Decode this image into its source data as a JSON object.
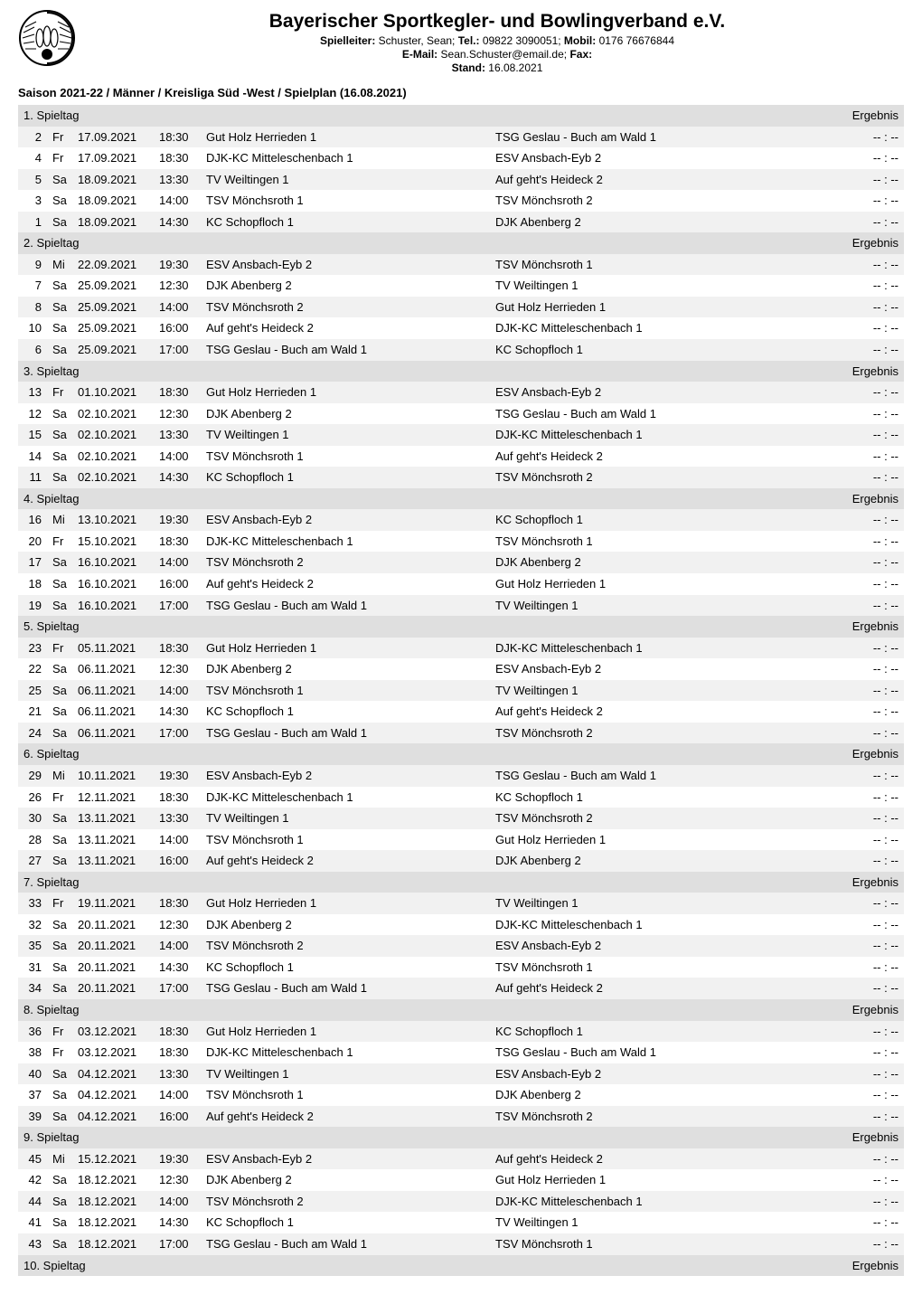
{
  "header": {
    "org_title": "Bayerischer Sportkegler- und Bowlingverband e.V.",
    "line1_label1": "Spielleiter:",
    "line1_val1": " Schuster, Sean; ",
    "line1_label2": "Tel.:",
    "line1_val2": " 09822 3090051; ",
    "line1_label3": "Mobil:",
    "line1_val3": " 0176 76676844",
    "line2_label1": "E-Mail:",
    "line2_val1": " Sean.Schuster@email.de; ",
    "line2_label2": "Fax:",
    "line3_label1": "Stand:",
    "line3_val1": " 16.08.2021"
  },
  "season_line": "Saison 2021-22 / Männer / Kreisliga Süd -West / Spielplan (16.08.2021)",
  "result_label": "Ergebnis",
  "result_placeholder": "--  :  --",
  "days": [
    {
      "label": "1. Spieltag",
      "rows": [
        {
          "n": "2",
          "dow": "Fr",
          "date": "17.09.2021",
          "time": "18:30",
          "home": "Gut Holz Herrieden 1",
          "away": "TSG Geslau - Buch am Wald 1"
        },
        {
          "n": "4",
          "dow": "Fr",
          "date": "17.09.2021",
          "time": "18:30",
          "home": "DJK-KC Mitteleschenbach 1",
          "away": "ESV Ansbach-Eyb 2"
        },
        {
          "n": "5",
          "dow": "Sa",
          "date": "18.09.2021",
          "time": "13:30",
          "home": "TV Weiltingen 1",
          "away": "Auf geht's Heideck 2"
        },
        {
          "n": "3",
          "dow": "Sa",
          "date": "18.09.2021",
          "time": "14:00",
          "home": "TSV Mönchsroth 1",
          "away": "TSV Mönchsroth 2"
        },
        {
          "n": "1",
          "dow": "Sa",
          "date": "18.09.2021",
          "time": "14:30",
          "home": "KC Schopfloch 1",
          "away": "DJK Abenberg 2"
        }
      ]
    },
    {
      "label": "2. Spieltag",
      "rows": [
        {
          "n": "9",
          "dow": "Mi",
          "date": "22.09.2021",
          "time": "19:30",
          "home": "ESV Ansbach-Eyb 2",
          "away": "TSV Mönchsroth 1"
        },
        {
          "n": "7",
          "dow": "Sa",
          "date": "25.09.2021",
          "time": "12:30",
          "home": "DJK Abenberg 2",
          "away": "TV Weiltingen 1"
        },
        {
          "n": "8",
          "dow": "Sa",
          "date": "25.09.2021",
          "time": "14:00",
          "home": "TSV Mönchsroth 2",
          "away": "Gut Holz Herrieden 1"
        },
        {
          "n": "10",
          "dow": "Sa",
          "date": "25.09.2021",
          "time": "16:00",
          "home": "Auf geht's Heideck 2",
          "away": "DJK-KC Mitteleschenbach 1"
        },
        {
          "n": "6",
          "dow": "Sa",
          "date": "25.09.2021",
          "time": "17:00",
          "home": "TSG Geslau - Buch am Wald 1",
          "away": "KC Schopfloch 1"
        }
      ]
    },
    {
      "label": "3. Spieltag",
      "rows": [
        {
          "n": "13",
          "dow": "Fr",
          "date": "01.10.2021",
          "time": "18:30",
          "home": "Gut Holz Herrieden 1",
          "away": "ESV Ansbach-Eyb 2"
        },
        {
          "n": "12",
          "dow": "Sa",
          "date": "02.10.2021",
          "time": "12:30",
          "home": "DJK Abenberg 2",
          "away": "TSG Geslau - Buch am Wald 1"
        },
        {
          "n": "15",
          "dow": "Sa",
          "date": "02.10.2021",
          "time": "13:30",
          "home": "TV Weiltingen 1",
          "away": "DJK-KC Mitteleschenbach 1"
        },
        {
          "n": "14",
          "dow": "Sa",
          "date": "02.10.2021",
          "time": "14:00",
          "home": "TSV Mönchsroth 1",
          "away": "Auf geht's Heideck 2"
        },
        {
          "n": "11",
          "dow": "Sa",
          "date": "02.10.2021",
          "time": "14:30",
          "home": "KC Schopfloch 1",
          "away": "TSV Mönchsroth 2"
        }
      ]
    },
    {
      "label": "4. Spieltag",
      "rows": [
        {
          "n": "16",
          "dow": "Mi",
          "date": "13.10.2021",
          "time": "19:30",
          "home": "ESV Ansbach-Eyb 2",
          "away": "KC Schopfloch 1"
        },
        {
          "n": "20",
          "dow": "Fr",
          "date": "15.10.2021",
          "time": "18:30",
          "home": "DJK-KC Mitteleschenbach 1",
          "away": "TSV Mönchsroth 1"
        },
        {
          "n": "17",
          "dow": "Sa",
          "date": "16.10.2021",
          "time": "14:00",
          "home": "TSV Mönchsroth 2",
          "away": "DJK Abenberg 2"
        },
        {
          "n": "18",
          "dow": "Sa",
          "date": "16.10.2021",
          "time": "16:00",
          "home": "Auf geht's Heideck 2",
          "away": "Gut Holz Herrieden 1"
        },
        {
          "n": "19",
          "dow": "Sa",
          "date": "16.10.2021",
          "time": "17:00",
          "home": "TSG Geslau - Buch am Wald 1",
          "away": "TV Weiltingen 1"
        }
      ]
    },
    {
      "label": "5. Spieltag",
      "rows": [
        {
          "n": "23",
          "dow": "Fr",
          "date": "05.11.2021",
          "time": "18:30",
          "home": "Gut Holz Herrieden 1",
          "away": "DJK-KC Mitteleschenbach 1"
        },
        {
          "n": "22",
          "dow": "Sa",
          "date": "06.11.2021",
          "time": "12:30",
          "home": "DJK Abenberg 2",
          "away": "ESV Ansbach-Eyb 2"
        },
        {
          "n": "25",
          "dow": "Sa",
          "date": "06.11.2021",
          "time": "14:00",
          "home": "TSV Mönchsroth 1",
          "away": "TV Weiltingen 1"
        },
        {
          "n": "21",
          "dow": "Sa",
          "date": "06.11.2021",
          "time": "14:30",
          "home": "KC Schopfloch 1",
          "away": "Auf geht's Heideck 2"
        },
        {
          "n": "24",
          "dow": "Sa",
          "date": "06.11.2021",
          "time": "17:00",
          "home": "TSG Geslau - Buch am Wald 1",
          "away": "TSV Mönchsroth 2"
        }
      ]
    },
    {
      "label": "6. Spieltag",
      "rows": [
        {
          "n": "29",
          "dow": "Mi",
          "date": "10.11.2021",
          "time": "19:30",
          "home": "ESV Ansbach-Eyb 2",
          "away": "TSG Geslau - Buch am Wald 1"
        },
        {
          "n": "26",
          "dow": "Fr",
          "date": "12.11.2021",
          "time": "18:30",
          "home": "DJK-KC Mitteleschenbach 1",
          "away": "KC Schopfloch 1"
        },
        {
          "n": "30",
          "dow": "Sa",
          "date": "13.11.2021",
          "time": "13:30",
          "home": "TV Weiltingen 1",
          "away": "TSV Mönchsroth 2"
        },
        {
          "n": "28",
          "dow": "Sa",
          "date": "13.11.2021",
          "time": "14:00",
          "home": "TSV Mönchsroth 1",
          "away": "Gut Holz Herrieden 1"
        },
        {
          "n": "27",
          "dow": "Sa",
          "date": "13.11.2021",
          "time": "16:00",
          "home": "Auf geht's Heideck 2",
          "away": "DJK Abenberg 2"
        }
      ]
    },
    {
      "label": "7. Spieltag",
      "rows": [
        {
          "n": "33",
          "dow": "Fr",
          "date": "19.11.2021",
          "time": "18:30",
          "home": "Gut Holz Herrieden 1",
          "away": "TV Weiltingen 1"
        },
        {
          "n": "32",
          "dow": "Sa",
          "date": "20.11.2021",
          "time": "12:30",
          "home": "DJK Abenberg 2",
          "away": "DJK-KC Mitteleschenbach 1"
        },
        {
          "n": "35",
          "dow": "Sa",
          "date": "20.11.2021",
          "time": "14:00",
          "home": "TSV Mönchsroth 2",
          "away": "ESV Ansbach-Eyb 2"
        },
        {
          "n": "31",
          "dow": "Sa",
          "date": "20.11.2021",
          "time": "14:30",
          "home": "KC Schopfloch 1",
          "away": "TSV Mönchsroth 1"
        },
        {
          "n": "34",
          "dow": "Sa",
          "date": "20.11.2021",
          "time": "17:00",
          "home": "TSG Geslau - Buch am Wald 1",
          "away": "Auf geht's Heideck 2"
        }
      ]
    },
    {
      "label": "8. Spieltag",
      "rows": [
        {
          "n": "36",
          "dow": "Fr",
          "date": "03.12.2021",
          "time": "18:30",
          "home": "Gut Holz Herrieden 1",
          "away": "KC Schopfloch 1"
        },
        {
          "n": "38",
          "dow": "Fr",
          "date": "03.12.2021",
          "time": "18:30",
          "home": "DJK-KC Mitteleschenbach 1",
          "away": "TSG Geslau - Buch am Wald 1"
        },
        {
          "n": "40",
          "dow": "Sa",
          "date": "04.12.2021",
          "time": "13:30",
          "home": "TV Weiltingen 1",
          "away": "ESV Ansbach-Eyb 2"
        },
        {
          "n": "37",
          "dow": "Sa",
          "date": "04.12.2021",
          "time": "14:00",
          "home": "TSV Mönchsroth 1",
          "away": "DJK Abenberg 2"
        },
        {
          "n": "39",
          "dow": "Sa",
          "date": "04.12.2021",
          "time": "16:00",
          "home": "Auf geht's Heideck 2",
          "away": "TSV Mönchsroth 2"
        }
      ]
    },
    {
      "label": "9. Spieltag",
      "rows": [
        {
          "n": "45",
          "dow": "Mi",
          "date": "15.12.2021",
          "time": "19:30",
          "home": "ESV Ansbach-Eyb 2",
          "away": "Auf geht's Heideck 2"
        },
        {
          "n": "42",
          "dow": "Sa",
          "date": "18.12.2021",
          "time": "12:30",
          "home": "DJK Abenberg 2",
          "away": "Gut Holz Herrieden 1"
        },
        {
          "n": "44",
          "dow": "Sa",
          "date": "18.12.2021",
          "time": "14:00",
          "home": "TSV Mönchsroth 2",
          "away": "DJK-KC Mitteleschenbach 1"
        },
        {
          "n": "41",
          "dow": "Sa",
          "date": "18.12.2021",
          "time": "14:30",
          "home": "KC Schopfloch 1",
          "away": "TV Weiltingen 1"
        },
        {
          "n": "43",
          "dow": "Sa",
          "date": "18.12.2021",
          "time": "17:00",
          "home": "TSG Geslau - Buch am Wald 1",
          "away": "TSV Mönchsroth 1"
        }
      ]
    },
    {
      "label": "10. Spieltag",
      "rows": []
    }
  ]
}
